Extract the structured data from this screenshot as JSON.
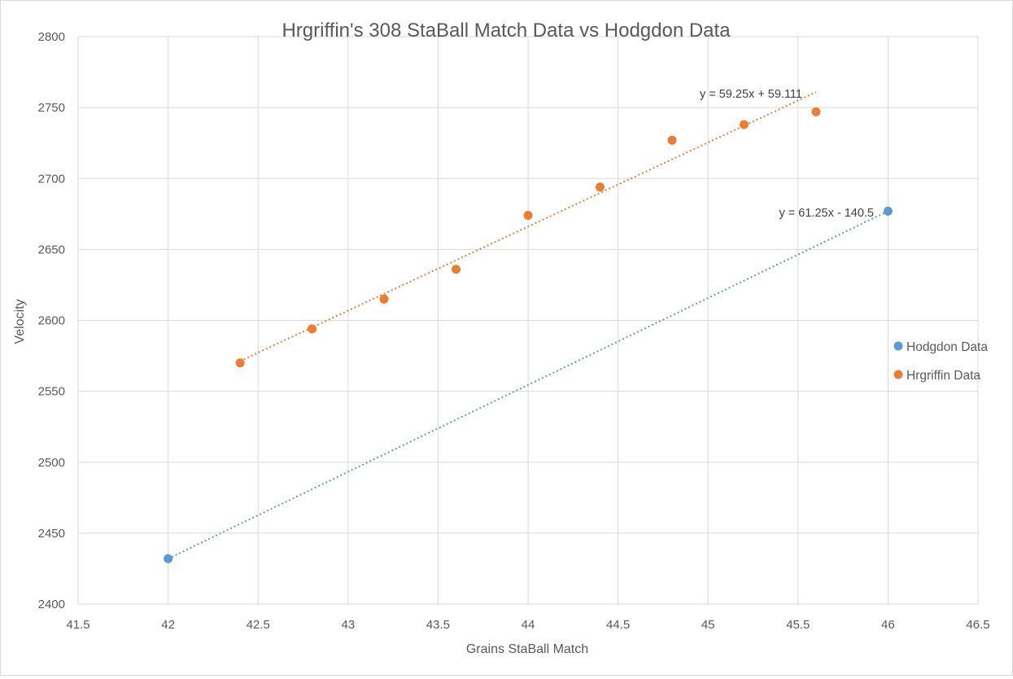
{
  "chart_data": {
    "type": "scatter",
    "title": "Hrgriffin's 308 StaBall Match Data vs Hodgdon Data",
    "xlabel": "Grains StaBall Match",
    "ylabel": "Velocity",
    "xlim": [
      41.5,
      46.5
    ],
    "ylim": [
      2400,
      2800
    ],
    "x_ticks": [
      "41.5",
      "42",
      "42.5",
      "43",
      "43.5",
      "44",
      "44.5",
      "45",
      "45.5",
      "46",
      "46.5"
    ],
    "y_ticks": [
      "2400",
      "2450",
      "2500",
      "2550",
      "2600",
      "2650",
      "2700",
      "2750",
      "2800"
    ],
    "grid": true,
    "legend_position": "right",
    "series": [
      {
        "name": "Hodgdon Data",
        "color": "#5b9bd5",
        "points": [
          {
            "x": 42,
            "y": 2432
          },
          {
            "x": 46,
            "y": 2677
          }
        ],
        "trendline": {
          "type": "linear",
          "slope": 61.25,
          "intercept": -140.5,
          "x_range": [
            42,
            46
          ],
          "equation": "y = 61.25x - 140.5"
        }
      },
      {
        "name": "Hrgriffin Data",
        "color": "#ed7d31",
        "points": [
          {
            "x": 42.4,
            "y": 2570
          },
          {
            "x": 42.8,
            "y": 2594
          },
          {
            "x": 43.2,
            "y": 2615
          },
          {
            "x": 43.6,
            "y": 2636
          },
          {
            "x": 44.0,
            "y": 2674
          },
          {
            "x": 44.4,
            "y": 2694
          },
          {
            "x": 44.8,
            "y": 2727
          },
          {
            "x": 45.2,
            "y": 2738
          },
          {
            "x": 45.6,
            "y": 2747
          }
        ],
        "trendline": {
          "type": "linear",
          "slope": 59.25,
          "intercept": 59.111,
          "x_range": [
            42.4,
            45.6
          ],
          "equation": "y = 59.25x + 59.111"
        }
      }
    ]
  }
}
